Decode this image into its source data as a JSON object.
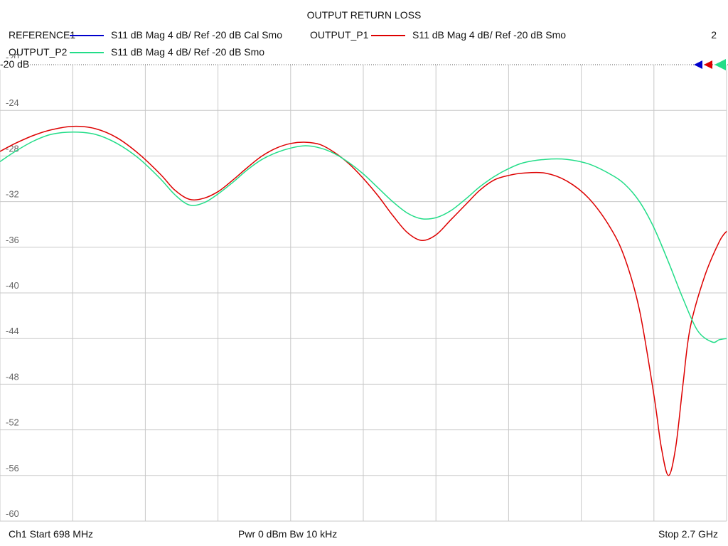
{
  "chart_data": {
    "type": "line",
    "title": "OUTPUT RETURN LOSS",
    "ylim": [
      -60,
      -20
    ],
    "y_ticks": [
      "-20",
      "-24",
      "-28",
      "-32",
      "-36",
      "-40",
      "-44",
      "-48",
      "-52",
      "-56",
      "-60"
    ],
    "reference_label": "-20 dB",
    "x_range_mhz": [
      698,
      2700
    ],
    "grid": true,
    "legend": [
      {
        "name": "REFERENCE1",
        "desc": "S11  dB Mag  4 dB/ Ref -20 dB  Cal Smo",
        "color": "#0000cc"
      },
      {
        "name": "OUTPUT_P1",
        "desc": "S11  dB Mag  4 dB/ Ref -20 dB  Smo",
        "color": "#dd0000"
      },
      {
        "name": "OUTPUT_P2",
        "desc": "S11  dB Mag  4 dB/ Ref -20 dB  Smo",
        "color": "#22dd88"
      }
    ],
    "trace_count": "2",
    "series": [
      {
        "name": "OUTPUT_P1",
        "color": "#dd0000",
        "x": [
          698,
          740,
          790,
          840,
          900,
          960,
          1020,
          1080,
          1140,
          1180,
          1220,
          1260,
          1300,
          1340,
          1380,
          1420,
          1460,
          1500,
          1540,
          1580,
          1620,
          1660,
          1700,
          1740,
          1780,
          1820,
          1860,
          1900,
          1940,
          1980,
          2020,
          2060,
          2100,
          2140,
          2200,
          2260,
          2320,
          2380,
          2420,
          2460,
          2500,
          2520,
          2540,
          2560,
          2580,
          2600,
          2640,
          2680,
          2700
        ],
        "values": [
          -27.6,
          -26.9,
          -26.2,
          -25.7,
          -25.4,
          -25.6,
          -26.4,
          -27.8,
          -29.6,
          -31.0,
          -31.8,
          -31.7,
          -31.1,
          -30.1,
          -29.0,
          -28.0,
          -27.3,
          -26.9,
          -26.8,
          -27.0,
          -27.7,
          -28.7,
          -30.0,
          -31.5,
          -33.2,
          -34.7,
          -35.4,
          -34.9,
          -33.6,
          -32.3,
          -31.0,
          -30.1,
          -29.7,
          -29.5,
          -29.5,
          -30.2,
          -31.7,
          -34.3,
          -37.0,
          -41.5,
          -49.0,
          -53.5,
          -56.0,
          -53.5,
          -48.0,
          -43.0,
          -38.5,
          -35.5,
          -34.6
        ]
      },
      {
        "name": "OUTPUT_P2",
        "color": "#22dd88",
        "x": [
          698,
          740,
          790,
          840,
          900,
          960,
          1020,
          1080,
          1140,
          1180,
          1220,
          1260,
          1300,
          1340,
          1380,
          1420,
          1460,
          1500,
          1540,
          1580,
          1620,
          1660,
          1700,
          1740,
          1780,
          1820,
          1860,
          1900,
          1940,
          1980,
          2020,
          2060,
          2100,
          2140,
          2200,
          2260,
          2320,
          2380,
          2420,
          2460,
          2500,
          2540,
          2580,
          2620,
          2660,
          2680,
          2700
        ],
        "values": [
          -28.5,
          -27.6,
          -26.7,
          -26.1,
          -25.9,
          -26.1,
          -26.9,
          -28.2,
          -30.0,
          -31.4,
          -32.3,
          -32.1,
          -31.3,
          -30.3,
          -29.2,
          -28.3,
          -27.7,
          -27.3,
          -27.1,
          -27.3,
          -27.8,
          -28.6,
          -29.6,
          -30.8,
          -32.0,
          -33.0,
          -33.5,
          -33.4,
          -32.8,
          -31.8,
          -30.7,
          -29.8,
          -29.1,
          -28.6,
          -28.3,
          -28.3,
          -28.7,
          -29.6,
          -30.5,
          -32.0,
          -34.3,
          -37.3,
          -40.5,
          -43.3,
          -44.3,
          -44.1,
          -44.0
        ]
      }
    ]
  },
  "footer": {
    "left": "Ch1  Start  698 MHz",
    "center": "Pwr  0 dBm  Bw  10 kHz",
    "right": "Stop  2.7 GHz"
  }
}
